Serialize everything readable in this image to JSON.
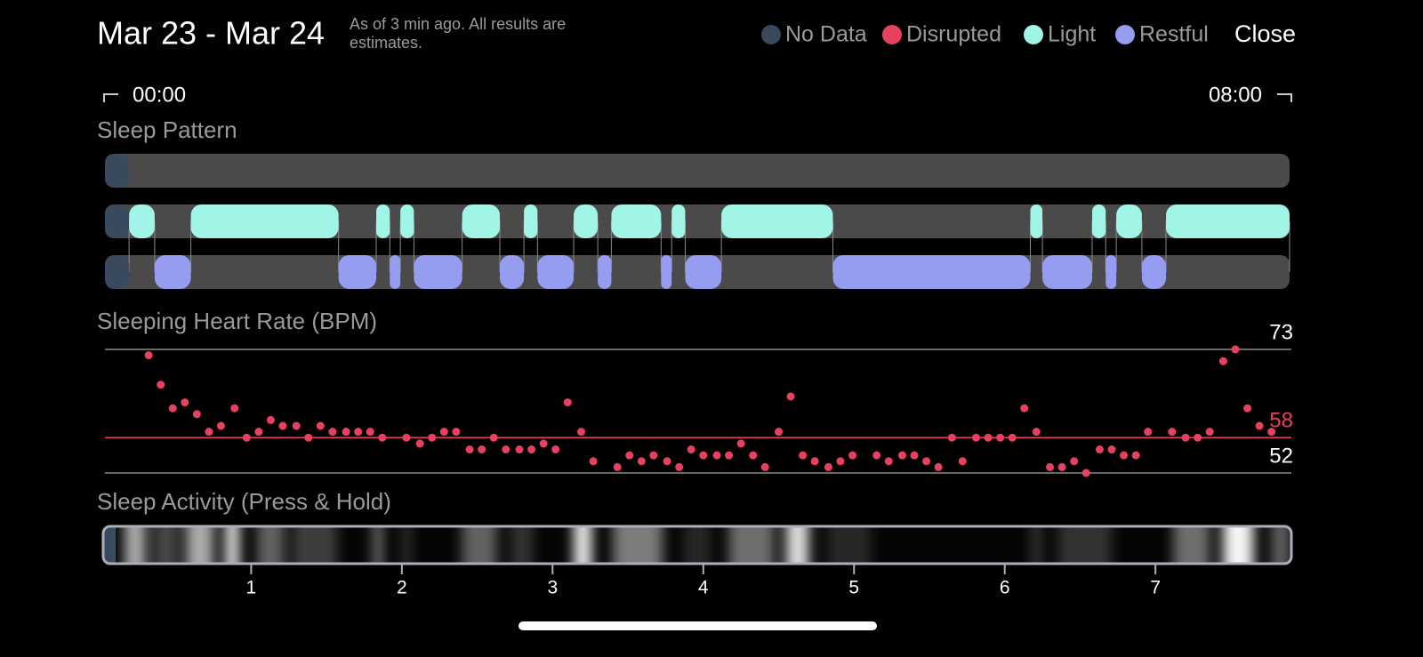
{
  "header": {
    "title": "Mar 23 - Mar 24",
    "note": "As of 3 min ago. All results are estimates.",
    "close": "Close"
  },
  "time_range": {
    "start": "00:00",
    "end": "08:00"
  },
  "chart_data": [
    {
      "type": "timeline",
      "title": "Sleep Pattern",
      "xlim": [
        0.03,
        7.89
      ],
      "series": [
        {
          "name": "No Data",
          "color": "#3a4a5e",
          "segments": [
            [
              0.03,
              0.19
            ]
          ]
        },
        {
          "name": "Disrupted",
          "color": "#e8415f",
          "segments": []
        },
        {
          "name": "Light",
          "color": "#a0f5e6",
          "segments": [
            [
              0.19,
              0.36
            ],
            [
              0.6,
              1.58
            ],
            [
              1.83,
              1.92
            ],
            [
              1.99,
              2.08
            ],
            [
              2.4,
              2.65
            ],
            [
              2.81,
              2.9
            ],
            [
              3.14,
              3.3
            ],
            [
              3.39,
              3.72
            ],
            [
              3.79,
              3.88
            ],
            [
              4.12,
              4.86
            ],
            [
              6.17,
              6.25
            ],
            [
              6.58,
              6.67
            ],
            [
              6.74,
              6.91
            ],
            [
              7.07,
              7.89
            ]
          ]
        },
        {
          "name": "Restful",
          "color": "#969df0",
          "segments": [
            [
              0.36,
              0.6
            ],
            [
              1.58,
              1.83
            ],
            [
              1.92,
              1.99
            ],
            [
              2.08,
              2.4
            ],
            [
              2.65,
              2.81
            ],
            [
              2.9,
              3.14
            ],
            [
              3.3,
              3.39
            ],
            [
              3.72,
              3.79
            ],
            [
              3.88,
              4.12
            ],
            [
              4.86,
              6.17
            ],
            [
              6.25,
              6.58
            ],
            [
              6.67,
              6.74
            ],
            [
              6.91,
              7.07
            ]
          ]
        }
      ]
    },
    {
      "type": "scatter",
      "title": "Sleeping Heart Rate (BPM)",
      "color": "#e8415f",
      "xlim": [
        0.03,
        7.89
      ],
      "ylim": [
        52,
        73
      ],
      "yticks": [
        52,
        73
      ],
      "reference_line": {
        "value": 58,
        "color": "#e8415f"
      },
      "x": [
        0.32,
        0.4,
        0.48,
        0.56,
        0.64,
        0.72,
        0.8,
        0.89,
        0.97,
        1.05,
        1.13,
        1.21,
        1.3,
        1.38,
        1.46,
        1.54,
        1.63,
        1.71,
        1.79,
        1.87,
        2.03,
        2.12,
        2.2,
        2.28,
        2.36,
        2.45,
        2.53,
        2.61,
        2.69,
        2.78,
        2.86,
        2.94,
        3.02,
        3.1,
        3.19,
        3.27,
        3.43,
        3.51,
        3.59,
        3.67,
        3.76,
        3.84,
        3.92,
        4.0,
        4.09,
        4.17,
        4.25,
        4.33,
        4.41,
        4.5,
        4.58,
        4.66,
        4.74,
        4.83,
        4.91,
        4.99,
        5.15,
        5.23,
        5.32,
        5.4,
        5.48,
        5.56,
        5.65,
        5.72,
        5.81,
        5.89,
        5.97,
        6.05,
        6.13,
        6.21,
        6.3,
        6.38,
        6.46,
        6.54,
        6.63,
        6.71,
        6.79,
        6.87,
        6.95,
        7.11,
        7.2,
        7.28,
        7.36,
        7.45,
        7.53,
        7.61,
        7.69,
        7.77
      ],
      "values": [
        72,
        67,
        63,
        64,
        62,
        59,
        60,
        63,
        58,
        59,
        61,
        60,
        60,
        58,
        60,
        59,
        59,
        59,
        59,
        58,
        58,
        57,
        58,
        59,
        59,
        56,
        56,
        58,
        56,
        56,
        56,
        57,
        56,
        64,
        59,
        54,
        53,
        55,
        54,
        55,
        54,
        53,
        56,
        55,
        55,
        55,
        57,
        55,
        53,
        59,
        65,
        55,
        54,
        53,
        54,
        55,
        55,
        54,
        55,
        55,
        54,
        53,
        58,
        54,
        58,
        58,
        58,
        58,
        63,
        59,
        53,
        53,
        54,
        52,
        56,
        56,
        55,
        55,
        59,
        59,
        58,
        58,
        59,
        71,
        73,
        63,
        60,
        59
      ]
    },
    {
      "type": "heatstrip",
      "title": "Sleep Activity (Press & Hold)",
      "xlim": [
        0.03,
        7.89
      ],
      "xticks": [
        1,
        2,
        3,
        4,
        5,
        6,
        7
      ],
      "segments": [
        {
          "start": 0.16,
          "end": 0.3,
          "level": 0.7
        },
        {
          "start": 0.36,
          "end": 0.51,
          "level": 0.3
        },
        {
          "start": 0.57,
          "end": 0.75,
          "level": 0.7
        },
        {
          "start": 0.83,
          "end": 0.92,
          "level": 0.95
        },
        {
          "start": 1.04,
          "end": 1.22,
          "level": 0.4
        },
        {
          "start": 1.28,
          "end": 1.57,
          "level": 0.25
        },
        {
          "start": 1.81,
          "end": 1.87,
          "level": 0.5
        },
        {
          "start": 2.0,
          "end": 2.06,
          "level": 0.2
        },
        {
          "start": 2.4,
          "end": 2.63,
          "level": 0.4
        },
        {
          "start": 2.72,
          "end": 2.87,
          "level": 0.2
        },
        {
          "start": 3.14,
          "end": 3.26,
          "level": 0.95
        },
        {
          "start": 3.4,
          "end": 3.73,
          "level": 0.5
        },
        {
          "start": 3.87,
          "end": 4.05,
          "level": 0.15
        },
        {
          "start": 4.17,
          "end": 4.47,
          "level": 0.45
        },
        {
          "start": 4.55,
          "end": 4.7,
          "level": 0.9
        },
        {
          "start": 4.82,
          "end": 5.11,
          "level": 0.15
        },
        {
          "start": 6.18,
          "end": 6.24,
          "level": 0.25
        },
        {
          "start": 6.35,
          "end": 6.71,
          "level": 0.2
        },
        {
          "start": 7.12,
          "end": 7.36,
          "level": 0.45
        },
        {
          "start": 7.45,
          "end": 7.65,
          "level": 1.0
        },
        {
          "start": 7.77,
          "end": 7.89,
          "level": 0.4
        }
      ]
    }
  ]
}
